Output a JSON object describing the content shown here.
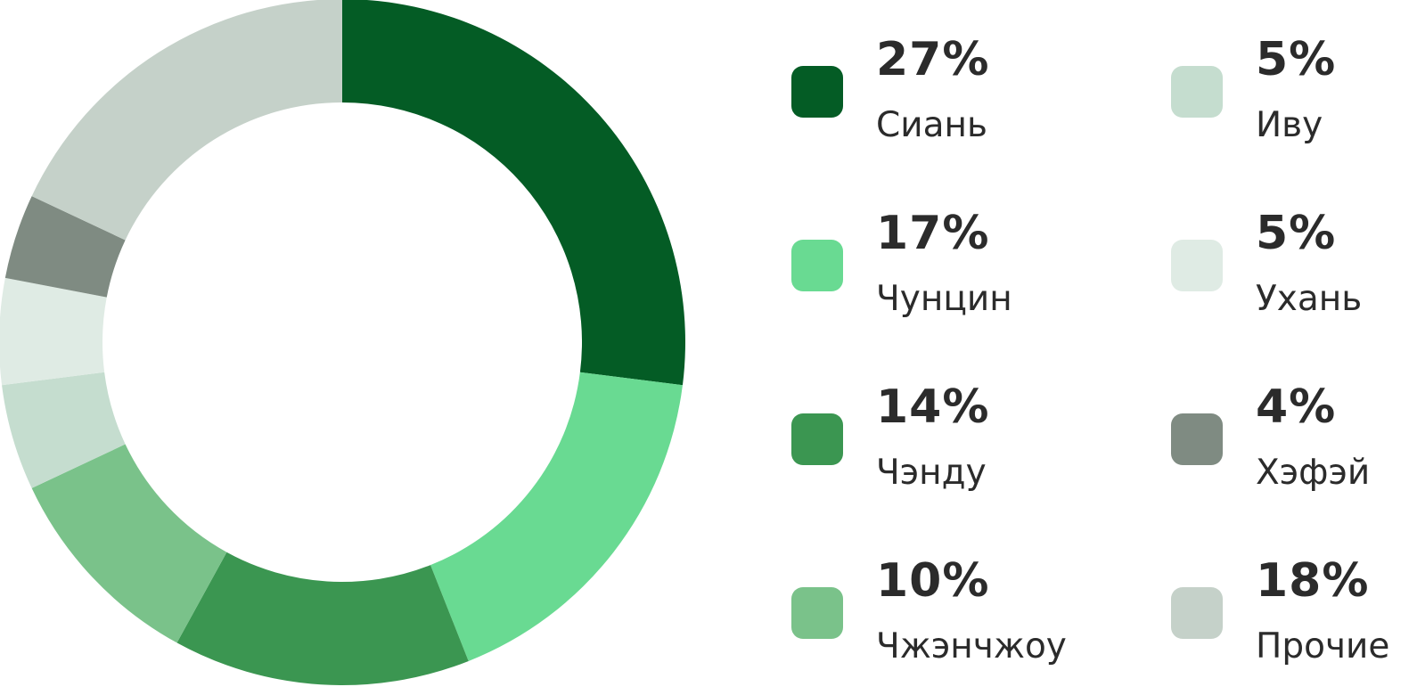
{
  "chart_data": {
    "type": "pie",
    "variant": "donut",
    "legend_position": "right",
    "slices": [
      {
        "label": "Сиань",
        "value": 27,
        "value_label": "27%",
        "color": "#045c25"
      },
      {
        "label": "Чунцин",
        "value": 17,
        "value_label": "17%",
        "color": "#69da92"
      },
      {
        "label": "Чэнду",
        "value": 14,
        "value_label": "14%",
        "color": "#3b9651"
      },
      {
        "label": "Чжэнчжоу",
        "value": 10,
        "value_label": "10%",
        "color": "#7ac28a"
      },
      {
        "label": "Иву",
        "value": 5,
        "value_label": "5%",
        "color": "#c5ddcf"
      },
      {
        "label": "Ухань",
        "value": 5,
        "value_label": "5%",
        "color": "#dfebe4"
      },
      {
        "label": "Хэфэй",
        "value": 4,
        "value_label": "4%",
        "color": "#7f8b82"
      },
      {
        "label": "Прочие",
        "value": 18,
        "value_label": "18%",
        "color": "#c5d1c9"
      }
    ]
  }
}
